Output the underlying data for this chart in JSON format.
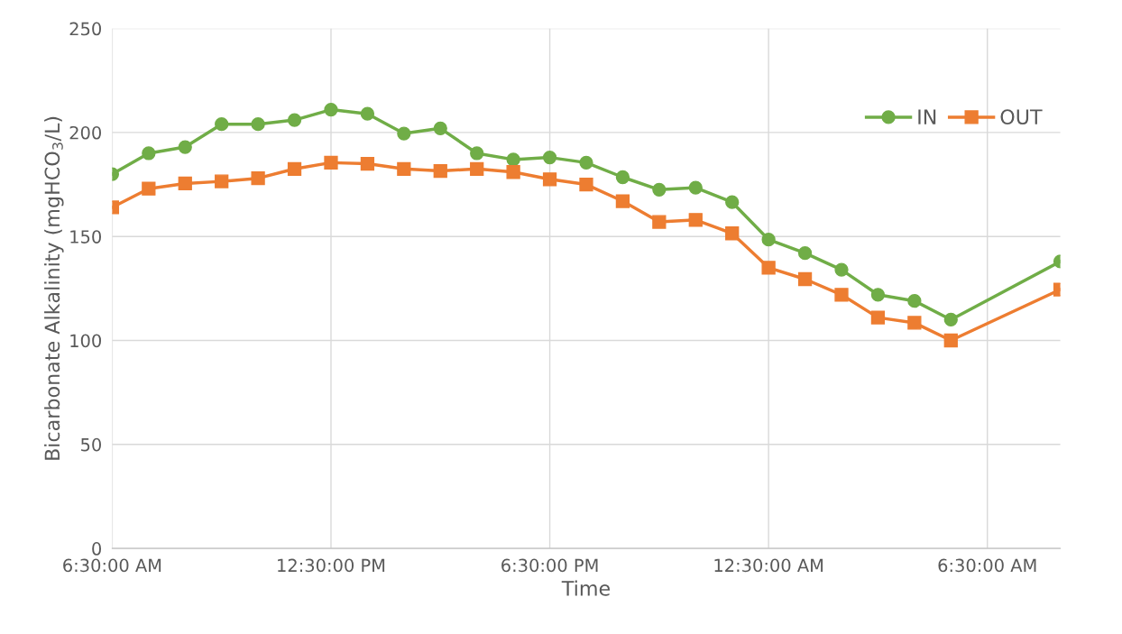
{
  "chart_data": {
    "type": "line",
    "xlabel": "Time",
    "ylabel": "Bicarbonate Alkalinity (mgHCO$_{3}$/L)",
    "x": [
      "2000-01-01T06:30",
      "2000-01-01T07:30",
      "2000-01-01T08:30",
      "2000-01-01T09:30",
      "2000-01-01T10:30",
      "2000-01-01T11:30",
      "2000-01-01T12:30",
      "2000-01-01T13:30",
      "2000-01-01T14:30",
      "2000-01-01T15:30",
      "2000-01-01T16:30",
      "2000-01-01T17:30",
      "2000-01-01T18:30",
      "2000-01-01T19:30",
      "2000-01-01T20:30",
      "2000-01-01T21:30",
      "2000-01-01T22:30",
      "2000-01-01T23:30",
      "2000-01-02T00:30",
      "2000-01-02T01:30",
      "2000-01-02T02:30",
      "2000-01-02T03:30",
      "2000-01-02T04:30",
      "2000-01-02T05:30",
      "2000-01-02T08:30"
    ],
    "series": [
      {
        "name": "IN",
        "color": "#70ad47",
        "marker": "circle",
        "values": [
          180,
          190,
          193,
          204,
          204,
          206,
          211,
          209,
          199.5,
          202,
          190,
          187,
          188,
          185.5,
          178.5,
          172.5,
          173.5,
          166.5,
          148.5,
          142,
          134,
          122,
          119,
          110,
          138
        ]
      },
      {
        "name": "OUT",
        "color": "#ed7d31",
        "marker": "square",
        "values": [
          164,
          173,
          175.5,
          176.5,
          178,
          182.5,
          185.5,
          185,
          182.5,
          181.5,
          182.5,
          181,
          177.5,
          175,
          167,
          157,
          158,
          151.5,
          135,
          129.5,
          122,
          111,
          108.5,
          100,
          124.5
        ]
      }
    ],
    "xlim": [
      "2000-01-01T06:30",
      "2000-01-02T08:30"
    ],
    "xticks": [
      {
        "value": "2000-01-01T06:30",
        "label": "6:30:00 AM"
      },
      {
        "value": "2000-01-01T12:30",
        "label": "12:30:00 PM"
      },
      {
        "value": "2000-01-01T18:30",
        "label": "6:30:00 PM"
      },
      {
        "value": "2000-01-02T00:30",
        "label": "12:30:00 AM"
      },
      {
        "value": "2000-01-02T06:30",
        "label": "6:30:00 AM"
      }
    ],
    "ylim": [
      0,
      250
    ],
    "yticks": [
      0,
      50,
      100,
      150,
      200,
      250
    ],
    "grid": true,
    "legend": "top right",
    "line_style": "solid"
  }
}
